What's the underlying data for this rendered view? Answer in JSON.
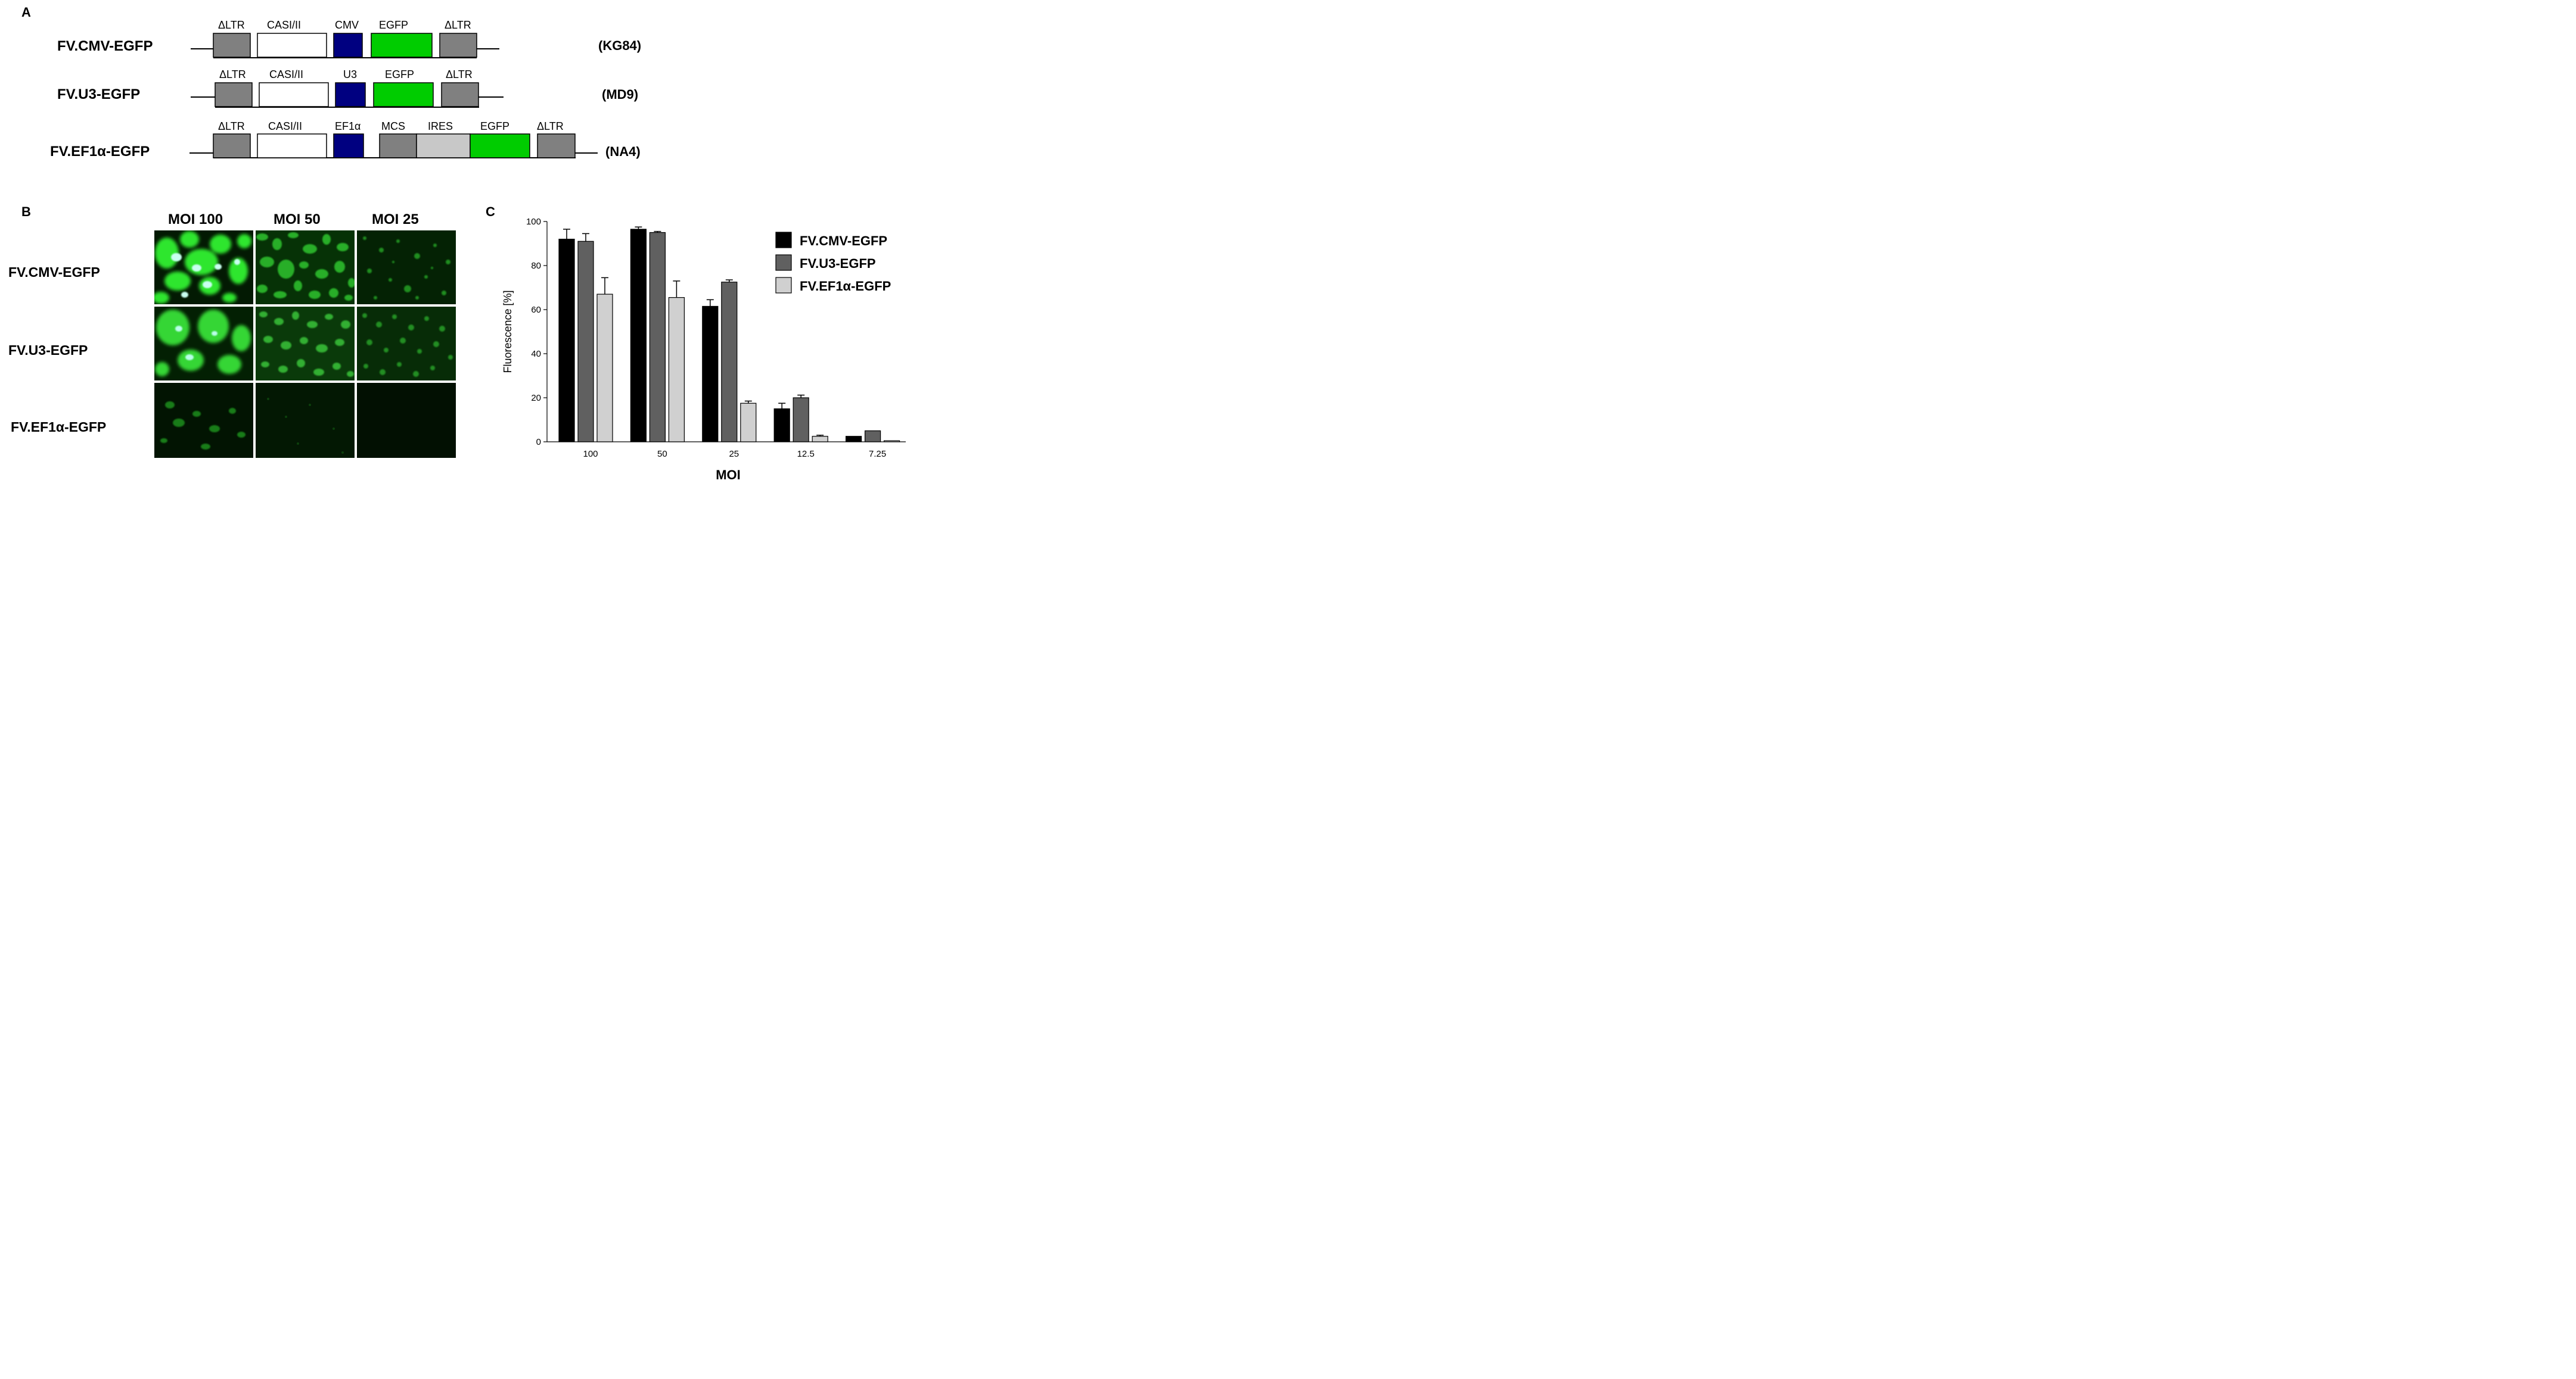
{
  "panel_a": {
    "letter": "A",
    "constructs": [
      {
        "name": "FV.CMV-EGFP",
        "clone": "(KG84)",
        "segments": [
          {
            "label": "ΔLTR",
            "color": "#808080"
          },
          {
            "label": "CASI/II",
            "color": "#ffffff"
          },
          {
            "label": "CMV",
            "color": "#000080"
          },
          {
            "label": "EGFP",
            "color": "#00cc00"
          },
          {
            "label": "ΔLTR",
            "color": "#808080"
          }
        ]
      },
      {
        "name": "FV.U3-EGFP",
        "clone": "(MD9)",
        "segments": [
          {
            "label": "ΔLTR",
            "color": "#808080"
          },
          {
            "label": "CASI/II",
            "color": "#ffffff"
          },
          {
            "label": "U3",
            "color": "#000080"
          },
          {
            "label": "EGFP",
            "color": "#00cc00"
          },
          {
            "label": "ΔLTR",
            "color": "#808080"
          }
        ]
      },
      {
        "name": "FV.EF1α-EGFP",
        "clone": "(NA4)",
        "segments": [
          {
            "label": "ΔLTR",
            "color": "#808080"
          },
          {
            "label": "CASI/II",
            "color": "#ffffff"
          },
          {
            "label": "EF1α",
            "color": "#000080"
          },
          {
            "label": "MCS",
            "color": "#808080"
          },
          {
            "label": "IRES",
            "color": "#c8c8c8"
          },
          {
            "label": "EGFP",
            "color": "#00cc00"
          },
          {
            "label": "ΔLTR",
            "color": "#808080"
          }
        ]
      }
    ]
  },
  "panel_b": {
    "letter": "B",
    "columns": [
      "MOI 100",
      "MOI 50",
      "MOI 25"
    ],
    "rows": [
      "FV.CMV-EGFP",
      "FV.U3-EGFP",
      "FV.EF1α-EGFP"
    ]
  },
  "panel_c": {
    "letter": "C"
  },
  "chart_data": {
    "type": "bar",
    "title": "",
    "xlabel": "MOI",
    "ylabel": "Fluorescence [%]",
    "ylim": [
      0,
      100
    ],
    "yticks": [
      0,
      20,
      40,
      60,
      80,
      100
    ],
    "categories": [
      "100",
      "50",
      "25",
      "12.5",
      "7.25"
    ],
    "legend_position": "top-right",
    "grid": false,
    "series": [
      {
        "name": "FV.CMV-EGFP",
        "color": "#000000",
        "values": [
          92,
          96.5,
          61.5,
          15,
          2.5
        ],
        "errors": [
          4.5,
          1,
          3,
          2.5,
          0
        ]
      },
      {
        "name": "FV.U3-EGFP",
        "color": "#606060",
        "values": [
          91,
          95,
          72.5,
          20,
          5
        ],
        "errors": [
          3.5,
          0.5,
          1,
          1.2,
          0
        ]
      },
      {
        "name": "FV.EF1α-EGFP",
        "color": "#d0d0d0",
        "values": [
          67,
          65.5,
          17.5,
          2.5,
          0.5
        ],
        "errors": [
          7.5,
          7.5,
          1,
          0.5,
          0
        ]
      }
    ]
  }
}
